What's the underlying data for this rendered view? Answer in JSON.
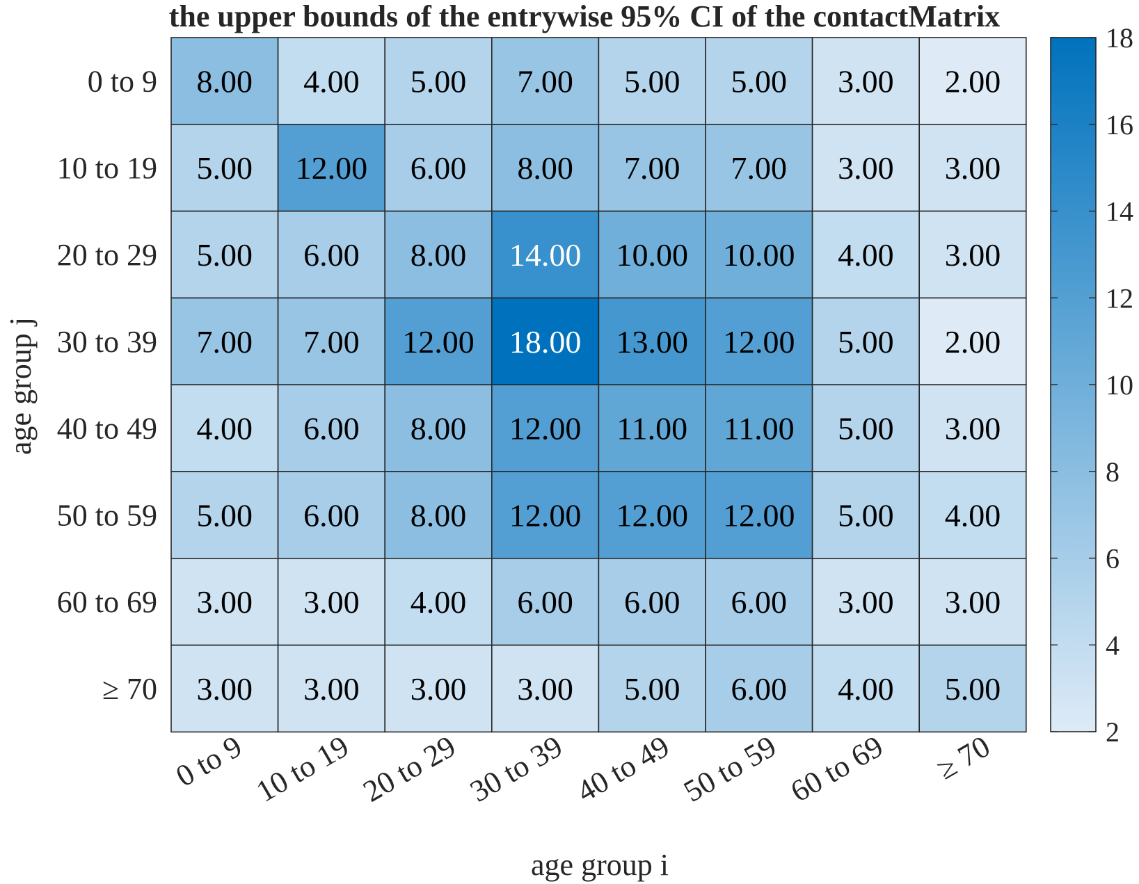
{
  "chart_data": {
    "type": "heatmap",
    "title": "the upper bounds of the entrywise 95% CI of the contactMatrix",
    "xlabel": "age group i",
    "ylabel": "age group j",
    "x_categories": [
      "0 to 9",
      "10 to 19",
      "20 to 29",
      "30 to 39",
      "40 to 49",
      "50 to 59",
      "60 to 69",
      "≥ 70"
    ],
    "y_categories": [
      "0 to 9",
      "10 to 19",
      "20 to 29",
      "30 to 39",
      "40 to 49",
      "50 to 59",
      "60 to 69",
      "≥ 70"
    ],
    "values": [
      [
        8,
        4,
        5,
        7,
        5,
        5,
        3,
        2
      ],
      [
        5,
        12,
        6,
        8,
        7,
        7,
        3,
        3
      ],
      [
        5,
        6,
        8,
        14,
        10,
        10,
        4,
        3
      ],
      [
        7,
        7,
        12,
        18,
        13,
        12,
        5,
        2
      ],
      [
        4,
        6,
        8,
        12,
        11,
        11,
        5,
        3
      ],
      [
        5,
        6,
        8,
        12,
        12,
        12,
        5,
        4
      ],
      [
        3,
        3,
        4,
        6,
        6,
        6,
        3,
        3
      ],
      [
        3,
        3,
        3,
        3,
        5,
        6,
        4,
        5
      ]
    ],
    "cell_labels": [
      [
        "8.00",
        "4.00",
        "5.00",
        "7.00",
        "5.00",
        "5.00",
        "3.00",
        "2.00"
      ],
      [
        "5.00",
        "12.00",
        "6.00",
        "8.00",
        "7.00",
        "7.00",
        "3.00",
        "3.00"
      ],
      [
        "5.00",
        "6.00",
        "8.00",
        "14.00",
        "10.00",
        "10.00",
        "4.00",
        "3.00"
      ],
      [
        "7.00",
        "7.00",
        "12.00",
        "18.00",
        "13.00",
        "12.00",
        "5.00",
        "2.00"
      ],
      [
        "4.00",
        "6.00",
        "8.00",
        "12.00",
        "11.00",
        "11.00",
        "5.00",
        "3.00"
      ],
      [
        "5.00",
        "6.00",
        "8.00",
        "12.00",
        "12.00",
        "12.00",
        "5.00",
        "4.00"
      ],
      [
        "3.00",
        "3.00",
        "4.00",
        "6.00",
        "6.00",
        "6.00",
        "3.00",
        "3.00"
      ],
      [
        "3.00",
        "3.00",
        "3.00",
        "3.00",
        "5.00",
        "6.00",
        "4.00",
        "5.00"
      ]
    ],
    "colorbar": {
      "range": [
        2,
        18
      ],
      "ticks": [
        "2",
        "4",
        "6",
        "8",
        "10",
        "12",
        "14",
        "16",
        "18"
      ]
    },
    "colors": {
      "low": "#deebf7",
      "high": "#0072bd",
      "grid": "#262626",
      "text_dark": "#000000",
      "text_light": "#ffffff"
    }
  }
}
